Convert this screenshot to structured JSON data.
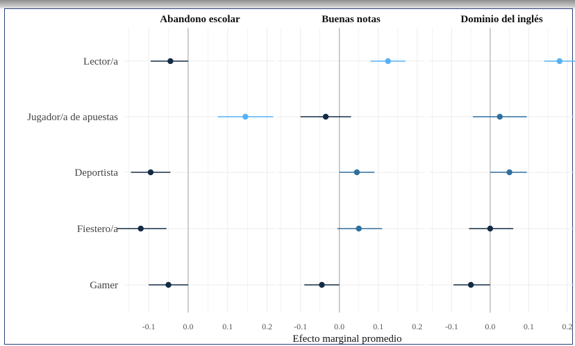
{
  "chart_data": {
    "type": "dot-errorbar",
    "xlabel": "Efecto marginal promedio",
    "categories": [
      "Lector/a",
      "Jugador/a de apuestas",
      "Deportista",
      "Fiestero/a",
      "Gamer"
    ],
    "xticks": [
      -0.1,
      0.0,
      0.1,
      0.2
    ],
    "xtick_labels": [
      "-0.1",
      "0.0",
      "0.1",
      "0.2"
    ],
    "xlim": [
      -0.16,
      0.22
    ],
    "colors": {
      "low": "#132b43",
      "mid": "#2f6f9f",
      "high": "#56b1f7",
      "zero_line": "#b5b5b5",
      "grid": "#ebebeb"
    },
    "panels": [
      {
        "title": "Abandono escolar",
        "points": [
          {
            "category": "Lector/a",
            "estimate": -0.045,
            "lower": -0.095,
            "upper": 0.0
          },
          {
            "category": "Jugador/a de apuestas",
            "estimate": 0.145,
            "lower": 0.075,
            "upper": 0.215
          },
          {
            "category": "Deportista",
            "estimate": -0.095,
            "lower": -0.145,
            "upper": -0.045
          },
          {
            "category": "Fiestero/a",
            "estimate": -0.12,
            "lower": -0.18,
            "upper": -0.055
          },
          {
            "category": "Gamer",
            "estimate": -0.05,
            "lower": -0.1,
            "upper": 0.0
          }
        ]
      },
      {
        "title": "Buenas notas",
        "points": [
          {
            "category": "Lector/a",
            "estimate": 0.125,
            "lower": 0.08,
            "upper": 0.17
          },
          {
            "category": "Jugador/a de apuestas",
            "estimate": -0.035,
            "lower": -0.1,
            "upper": 0.03
          },
          {
            "category": "Deportista",
            "estimate": 0.045,
            "lower": 0.0,
            "upper": 0.09
          },
          {
            "category": "Fiestero/a",
            "estimate": 0.05,
            "lower": -0.005,
            "upper": 0.11
          },
          {
            "category": "Gamer",
            "estimate": -0.045,
            "lower": -0.09,
            "upper": 0.0
          }
        ]
      },
      {
        "title": "Dominio del inglés",
        "points": [
          {
            "category": "Lector/a",
            "estimate": 0.18,
            "lower": 0.14,
            "upper": 0.225
          },
          {
            "category": "Jugador/a de apuestas",
            "estimate": 0.025,
            "lower": -0.045,
            "upper": 0.095
          },
          {
            "category": "Deportista",
            "estimate": 0.05,
            "lower": 0.0,
            "upper": 0.095
          },
          {
            "category": "Fiestero/a",
            "estimate": 0.0,
            "lower": -0.055,
            "upper": 0.06
          },
          {
            "category": "Gamer",
            "estimate": -0.05,
            "lower": -0.095,
            "upper": 0.0
          }
        ]
      }
    ]
  }
}
